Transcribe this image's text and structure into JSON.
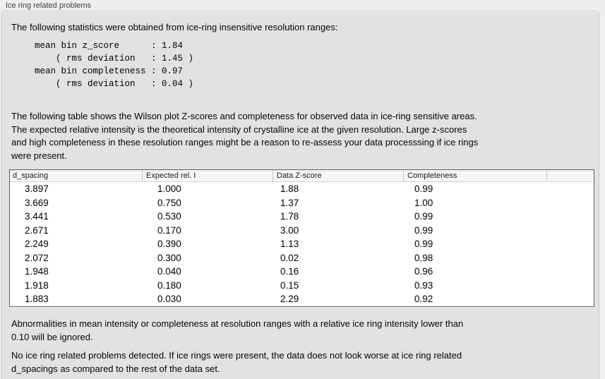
{
  "panel": {
    "title": "Ice ring related problems"
  },
  "stats": {
    "intro": "The following statistics were obtained from ice-ring insensitive resolution ranges:",
    "block": "mean bin z_score      : 1.84\n    ( rms deviation   : 1.45 )\nmean bin completeness : 0.97\n    ( rms deviation   : 0.04 )",
    "mean_bin_z_score": "1.84",
    "z_score_rms_deviation": "1.45",
    "mean_bin_completeness": "0.97",
    "completeness_rms_deviation": "0.04"
  },
  "table_intro": "The following table shows the Wilson plot Z-scores and completeness for observed data in ice-ring sensitive areas.\nThe expected relative intensity is the theoretical intensity of crystalline ice at the given resolution. Large z-scores\nand high completeness in these resolution ranges might be a reason to re-assess your data processsing if ice rings\nwere present.",
  "table": {
    "columns": [
      "d_spacing",
      "Expected rel. I",
      "Data Z-score",
      "Completeness",
      ""
    ],
    "rows": [
      [
        "3.897",
        "1.000",
        "1.88",
        "0.99"
      ],
      [
        "3.669",
        "0.750",
        "1.37",
        "1.00"
      ],
      [
        "3.441",
        "0.530",
        "1.78",
        "0.99"
      ],
      [
        "2.671",
        "0.170",
        "3.00",
        "0.99"
      ],
      [
        "2.249",
        "0.390",
        "1.13",
        "0.99"
      ],
      [
        "2.072",
        "0.300",
        "0.02",
        "0.98"
      ],
      [
        "1.948",
        "0.040",
        "0.16",
        "0.96"
      ],
      [
        "1.918",
        "0.180",
        "0.15",
        "0.93"
      ],
      [
        "1.883",
        "0.030",
        "2.29",
        "0.92"
      ]
    ]
  },
  "notes": {
    "ignore_note": "Abnormalities in mean intensity or completeness at resolution ranges with a relative ice ring intensity lower than\n0.10 will be ignored.",
    "conclusion": "No ice ring related problems detected. If ice rings were present, the data does not look worse at ice ring related\nd_spacings as compared to the rest of the data set."
  },
  "colors": {
    "page_background": "#eeeeee",
    "box_background": "#e2e2e2",
    "table_background": "#ffffff",
    "table_border": "#5f5f5f",
    "text": "#000000"
  }
}
